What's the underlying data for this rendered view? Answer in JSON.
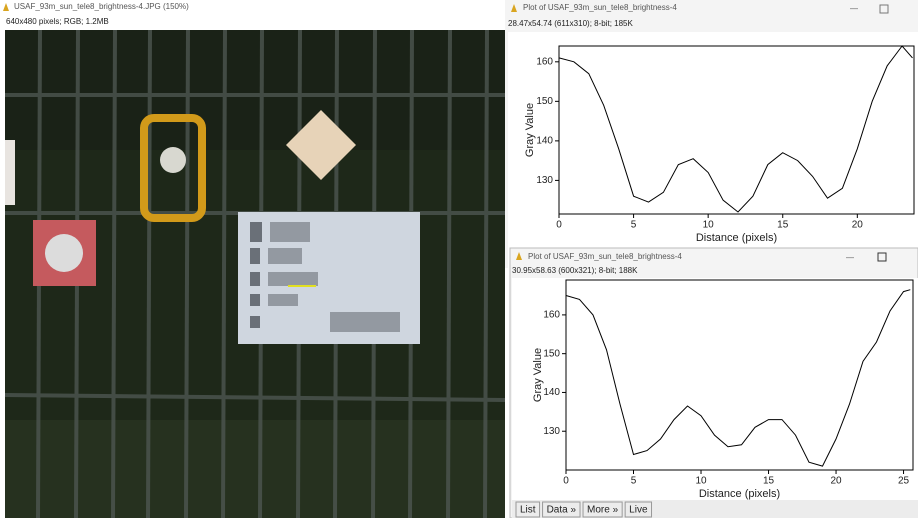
{
  "image_window": {
    "title": "USAF_93m_sun_tele8_brightness-4.JPG (150%)",
    "info": "640x480 pixels; RGB; 1.2MB"
  },
  "chart_data": [
    {
      "type": "line",
      "window_title": "Plot of USAF_93m_sun_tele8_brightness-4",
      "info": "28.47x54.74  (611x310); 8-bit; 185K",
      "xlabel": "Distance (pixels)",
      "ylabel": "Gray Value",
      "x": [
        0,
        1,
        2,
        3,
        4,
        5,
        6,
        7,
        8,
        9,
        10,
        11,
        12,
        13,
        14,
        15,
        16,
        17,
        18,
        19,
        20,
        21,
        22,
        23,
        23.7
      ],
      "values": [
        161,
        160,
        157,
        149,
        138,
        126,
        124.5,
        127,
        134,
        135.5,
        132,
        125,
        122,
        126,
        134,
        137,
        135,
        131,
        125.5,
        128,
        138,
        150,
        159,
        164,
        161
      ],
      "color": "#000000",
      "xlim": [
        0,
        23.8
      ],
      "ylim": [
        121.5,
        164
      ],
      "xticks": [
        0,
        5,
        10,
        15,
        20
      ],
      "yticks": [
        130,
        140,
        150,
        160
      ]
    },
    {
      "type": "line",
      "window_title": "Plot of USAF_93m_sun_tele8_brightness-4",
      "info": "30.95x58.63  (600x321); 8-bit; 188K",
      "xlabel": "Distance (pixels)",
      "ylabel": "Gray Value",
      "x": [
        0,
        1,
        2,
        3,
        4,
        5,
        6,
        7,
        8,
        9,
        10,
        11,
        12,
        13,
        14,
        15,
        16,
        17,
        18,
        19,
        20,
        21,
        22,
        23,
        24,
        25,
        25.5
      ],
      "values": [
        165,
        164,
        160,
        151,
        137,
        124,
        125,
        128,
        133,
        136.5,
        134,
        129,
        126,
        126.5,
        131,
        133,
        133,
        129,
        122,
        121,
        128,
        137,
        148,
        153,
        161,
        166,
        166.5
      ],
      "color": "#000000",
      "xlim": [
        0,
        25.7
      ],
      "ylim": [
        120,
        169
      ],
      "xticks": [
        0,
        5,
        10,
        15,
        20,
        25
      ],
      "yticks": [
        130,
        140,
        150,
        160
      ]
    }
  ],
  "buttons": [
    "List",
    "Data »",
    "More »",
    "Live"
  ]
}
